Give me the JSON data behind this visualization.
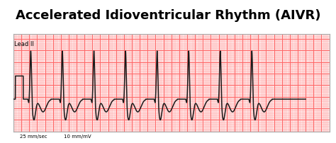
{
  "title": "Accelerated Idioventricular Rhythm (AIVR)",
  "lead_label": "Lead II",
  "bottom_label1": "25 mm/sec",
  "bottom_label2": "10 mm/mV",
  "bg_color": "#FFCCCC",
  "grid_minor_color": "#FF9999",
  "grid_major_color": "#FF6666",
  "ecg_color": "#1a1a1a",
  "border_color": "#aaaaaa",
  "title_fontsize": 13,
  "paper_bg": "#FFE8E8"
}
